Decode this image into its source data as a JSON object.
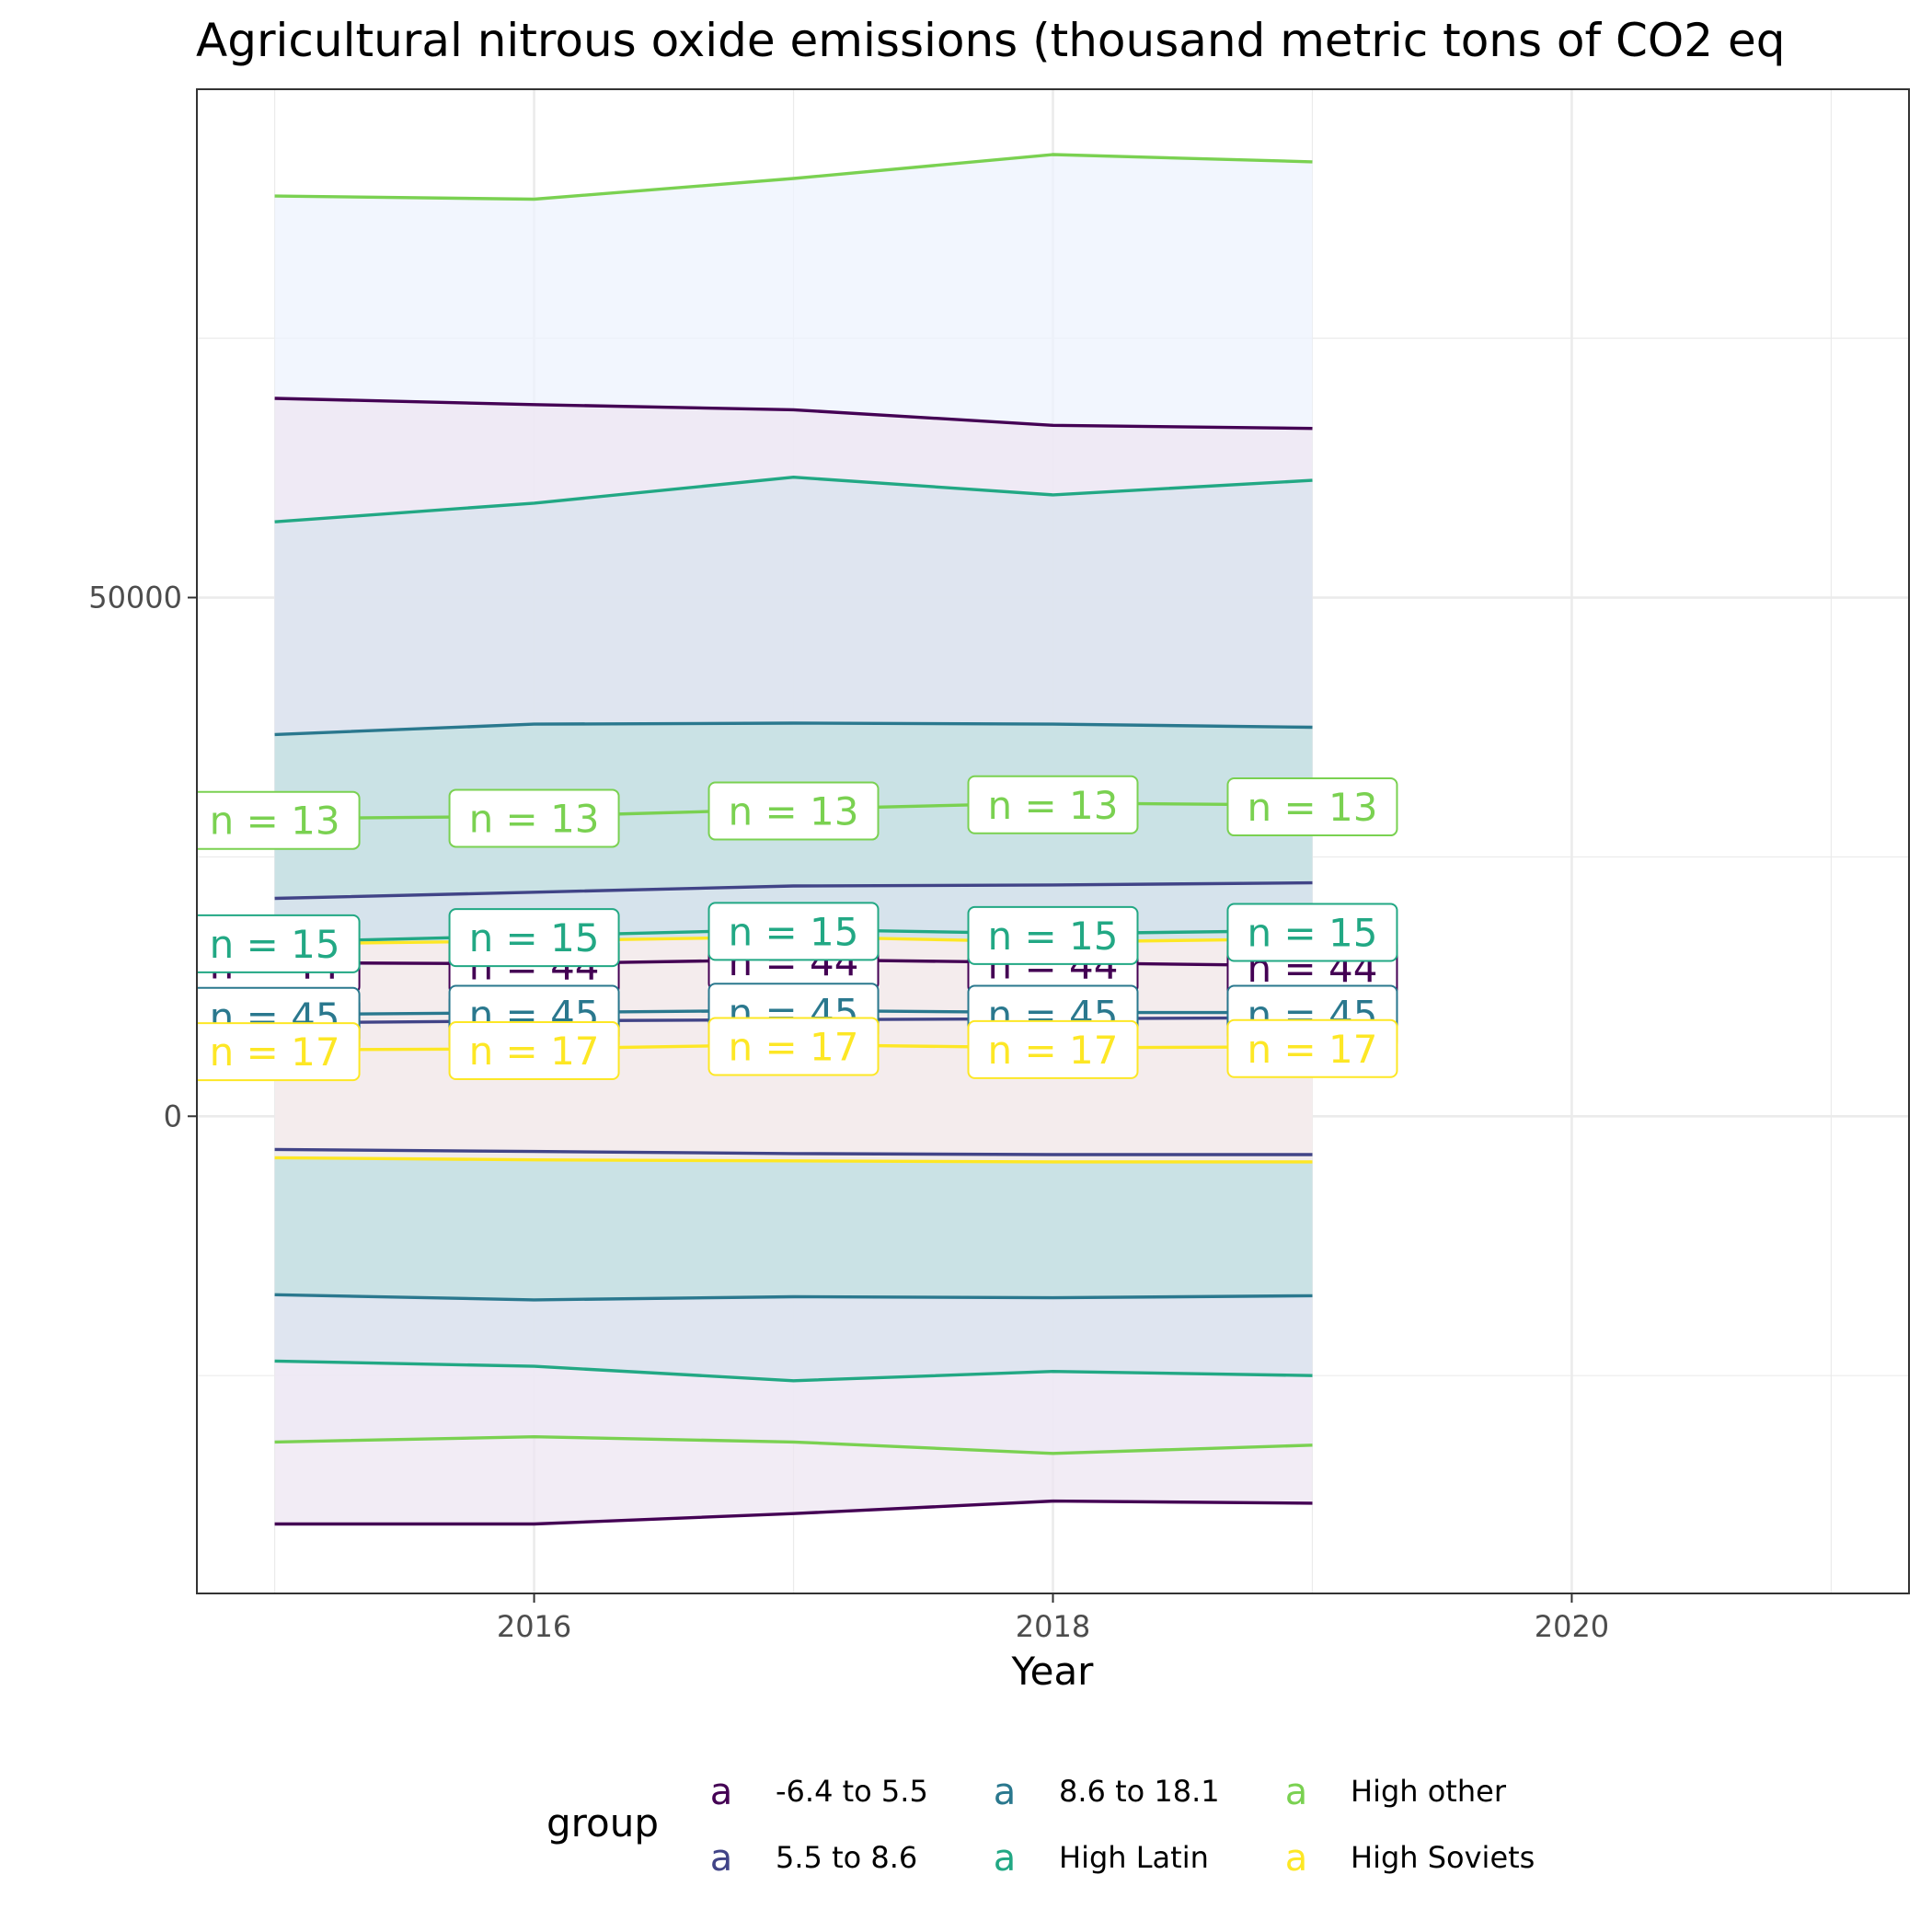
{
  "chart_data": {
    "type": "line",
    "title": "Agricultural nitrous oxide emissions (thousand metric tons of CO2 eq",
    "xlabel": "Year",
    "ylabel": "",
    "xlim": [
      2014.7,
      2021.3
    ],
    "ylim": [
      -46000,
      99000
    ],
    "x_ticks": [
      2016,
      2018,
      2020
    ],
    "y_ticks": [
      0,
      50000
    ],
    "grid": true,
    "legend": {
      "title": "group",
      "position": "bottom",
      "key_glyph": "a",
      "entries": [
        {
          "label": "-6.4 to 5.5",
          "color": "#440154"
        },
        {
          "label": "5.5 to 8.6",
          "color": "#414487"
        },
        {
          "label": "8.6 to 18.1",
          "color": "#2A788E"
        },
        {
          "label": "High Latin",
          "color": "#22A884"
        },
        {
          "label": "High other",
          "color": "#7AD151"
        },
        {
          "label": "High Soviets",
          "color": "#FDE725"
        }
      ]
    },
    "x": [
      2015,
      2016,
      2017,
      2018,
      2019
    ],
    "series": [
      {
        "name": "-6.4 to 5.5",
        "color": "#440154",
        "ribbon": "#EDE6F1",
        "mean": [
          14800,
          14700,
          15100,
          14800,
          14500
        ],
        "upper": [
          69200,
          68600,
          68100,
          66600,
          66300
        ],
        "lower": [
          -39300,
          -39300,
          -38300,
          -37100,
          -37300
        ],
        "n_label": "n = 44"
      },
      {
        "name": "5.5 to 8.6",
        "color": "#414487",
        "ribbon": "#D9E3EE",
        "mean": [
          9000,
          9200,
          9300,
          9400,
          9500
        ],
        "upper": [
          21000,
          21600,
          22200,
          22300,
          22500
        ],
        "lower": [
          -3200,
          -3400,
          -3600,
          -3700,
          -3700
        ],
        "n_label": "n = 45"
      },
      {
        "name": "8.6 to 18.1",
        "color": "#2A788E",
        "ribbon": "#C3E0E1",
        "mean": [
          9800,
          10000,
          10200,
          10000,
          10000
        ],
        "upper": [
          36800,
          37800,
          37900,
          37800,
          37500
        ],
        "lower": [
          -17200,
          -17700,
          -17400,
          -17500,
          -17300
        ],
        "n_label": "n = 45"
      },
      {
        "name": "High Latin",
        "color": "#22A884",
        "ribbon": "#D9E3EE",
        "mean": [
          16800,
          17400,
          18000,
          17600,
          17900
        ],
        "upper": [
          57300,
          59100,
          61600,
          59900,
          61300
        ],
        "lower": [
          -23600,
          -24100,
          -25500,
          -24600,
          -25000
        ],
        "n_label": "n = 15"
      },
      {
        "name": "High other",
        "color": "#7AD151",
        "ribbon": "#EEF3FD",
        "mean": [
          28700,
          28900,
          29600,
          30200,
          30000
        ],
        "upper": [
          88700,
          88400,
          90400,
          92700,
          92000
        ],
        "lower": [
          -31400,
          -30900,
          -31400,
          -32500,
          -31700
        ],
        "n_label": "n = 13"
      },
      {
        "name": "High Soviets",
        "color": "#FDE725",
        "ribbon": "#FDEFEE",
        "mean": [
          6400,
          6500,
          6900,
          6600,
          6700
        ],
        "upper": [
          16600,
          16900,
          17300,
          16800,
          17100
        ],
        "lower": [
          -4000,
          -4200,
          -4300,
          -4400,
          -4400
        ],
        "n_label": "n = 17"
      }
    ]
  }
}
